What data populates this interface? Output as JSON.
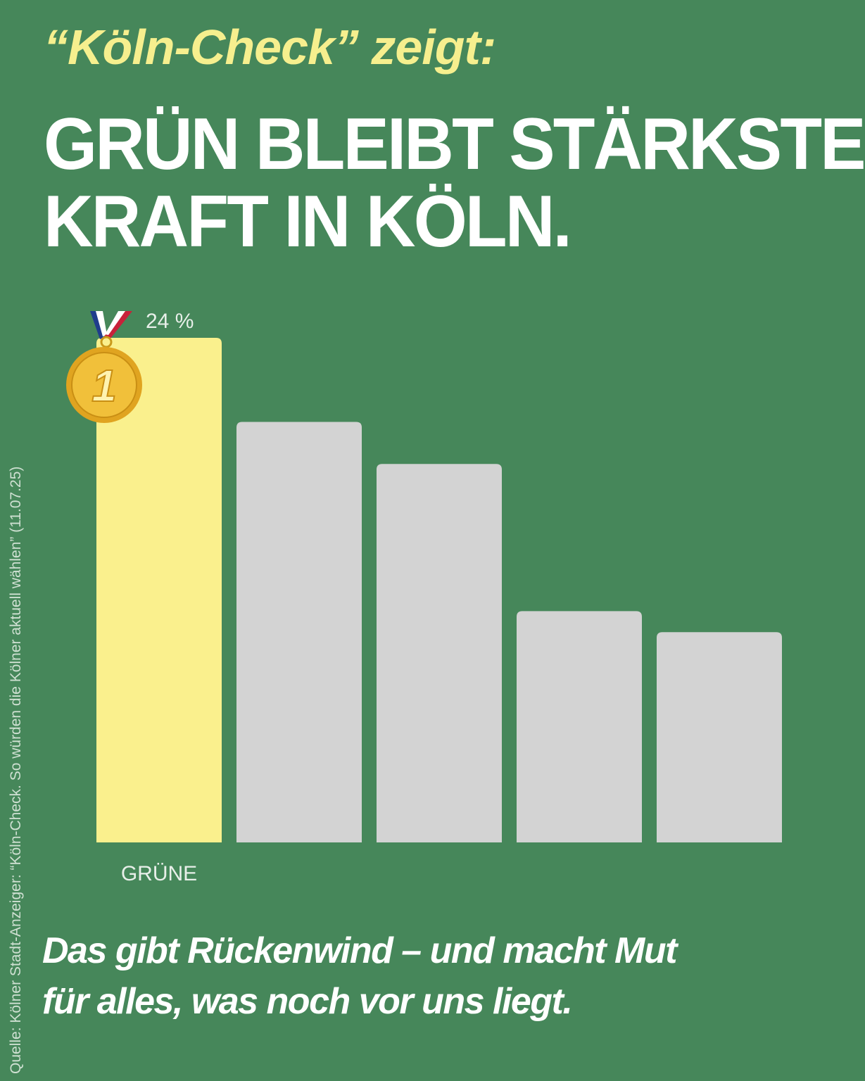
{
  "kicker": "“Köln-Check” zeigt:",
  "headline": {
    "line1": "GRÜN BLEIBT STÄRKSTE",
    "line2": "KRAFT IN KÖLN."
  },
  "source": "Quelle: Kölner Stadt-Anzeiger: “Köln-Check. So würden die Kölner aktuell wählen” (11.07.25)",
  "medal": {
    "rank": "1",
    "icon": "gold-medal-icon"
  },
  "chart_data": {
    "type": "bar",
    "categories": [
      "GRÜNE",
      "",
      "",
      "",
      ""
    ],
    "values": [
      24,
      20,
      18,
      11,
      10
    ],
    "data_labels": [
      "24 %",
      "",
      "",
      "",
      ""
    ],
    "ylim": [
      0,
      24
    ],
    "colors": [
      "#faf08d",
      "#d3d3d3",
      "#d3d3d3",
      "#d3d3d3",
      "#d3d3d3"
    ]
  },
  "footer": {
    "line1": "Das gibt Rückenwind – und macht Mut",
    "line2": "für alles, was noch vor uns liegt."
  },
  "colors": {
    "background": "#46875a",
    "accent": "#f6ef8e"
  }
}
